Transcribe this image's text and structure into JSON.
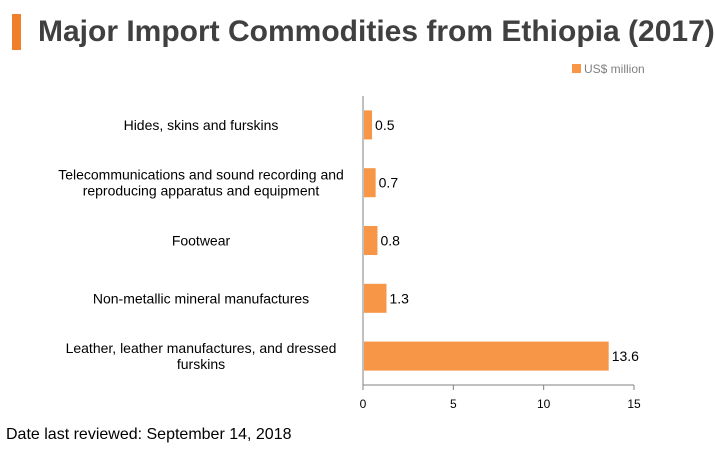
{
  "colors": {
    "accent": "#f07f2b",
    "bar": "#f79646",
    "axis": "#808080",
    "title": "#404040"
  },
  "footer": {
    "note": "Date last reviewed: September 14, 2018"
  },
  "chart_data": {
    "type": "bar",
    "orientation": "horizontal",
    "title": "Major Import Commodities from Ethiopia (2017)",
    "categories": [
      "Hides, skins and furskins",
      "Telecommunications and sound recording and reproducing apparatus and equipment",
      "Footwear",
      "Non-metallic mineral manufactures",
      "Leather, leather manufactures, and dressed furskins"
    ],
    "series": [
      {
        "name": "US$ million",
        "values": [
          0.5,
          0.7,
          0.8,
          1.3,
          13.6
        ]
      }
    ],
    "xlim": [
      0,
      15
    ],
    "xticks": [
      "0",
      "5",
      "10",
      "15"
    ],
    "value_labels": [
      "0.5",
      "0.7",
      "0.8",
      "1.3",
      "13.6"
    ],
    "legend_position": "top-right",
    "grid": false
  }
}
